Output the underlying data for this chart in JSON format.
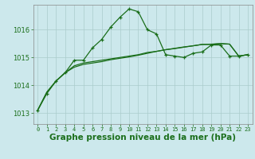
{
  "bg_color": "#cce8ec",
  "grid_color": "#aacccc",
  "line_color": "#1a6e1a",
  "marker_color": "#1a6e1a",
  "xlabel": "Graphe pression niveau de la mer (hPa)",
  "xlabel_fontsize": 7.5,
  "ylabel_ticks": [
    1013,
    1014,
    1015,
    1016
  ],
  "xlim": [
    -0.5,
    23.5
  ],
  "ylim": [
    1012.6,
    1016.9
  ],
  "x": [
    0,
    1,
    2,
    3,
    4,
    5,
    6,
    7,
    8,
    9,
    10,
    11,
    12,
    13,
    14,
    15,
    16,
    17,
    18,
    19,
    20,
    21,
    22,
    23
  ],
  "series1": [
    1013.1,
    1013.7,
    1014.15,
    1014.45,
    1014.9,
    1014.9,
    1015.35,
    1015.65,
    1016.1,
    1016.45,
    1016.75,
    1016.65,
    1016.0,
    1015.85,
    1015.1,
    1015.05,
    1015.0,
    1015.15,
    1015.2,
    1015.45,
    1015.45,
    1015.05,
    1015.05,
    1015.1
  ],
  "series2": [
    1013.1,
    1013.75,
    1014.15,
    1014.45,
    1014.7,
    1014.8,
    1014.85,
    1014.9,
    1014.95,
    1015.0,
    1015.05,
    1015.1,
    1015.18,
    1015.22,
    1015.28,
    1015.32,
    1015.37,
    1015.42,
    1015.47,
    1015.47,
    1015.5,
    1015.48,
    1015.05,
    1015.1
  ],
  "series3": [
    1013.1,
    1013.75,
    1014.15,
    1014.45,
    1014.65,
    1014.75,
    1014.8,
    1014.85,
    1014.92,
    1014.97,
    1015.02,
    1015.08,
    1015.15,
    1015.22,
    1015.28,
    1015.33,
    1015.38,
    1015.42,
    1015.47,
    1015.48,
    1015.5,
    1015.48,
    1015.05,
    1015.1
  ]
}
